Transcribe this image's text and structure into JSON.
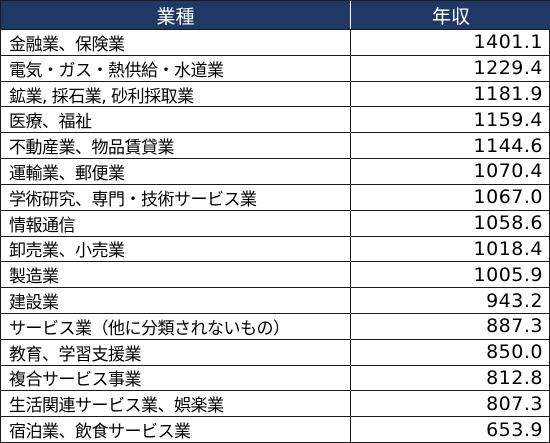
{
  "table": {
    "headers": {
      "industry": "業種",
      "income": "年収"
    },
    "rows": [
      {
        "industry": "金融業、保険業",
        "income": "1401.1"
      },
      {
        "industry": "電気・ガス・熱供給・水道業",
        "income": "1229.4"
      },
      {
        "industry": "鉱業, 採石業, 砂利採取業",
        "income": "1181.9"
      },
      {
        "industry": "医療、福祉",
        "income": "1159.4"
      },
      {
        "industry": "不動産業、物品賃貸業",
        "income": "1144.6"
      },
      {
        "industry": "運輸業、郵便業",
        "income": "1070.4"
      },
      {
        "industry": "学術研究、専門・技術サービス業",
        "income": "1067.0"
      },
      {
        "industry": "情報通信",
        "income": "1058.6"
      },
      {
        "industry": "卸売業、小売業",
        "income": "1018.4"
      },
      {
        "industry": "製造業",
        "income": "1005.9"
      },
      {
        "industry": "建設業",
        "income": "943.2"
      },
      {
        "industry": "サービス業（他に分類されないもの）",
        "income": "887.3"
      },
      {
        "industry": "教育、学習支援業",
        "income": "850.0"
      },
      {
        "industry": "複合サービス事業",
        "income": "812.8"
      },
      {
        "industry": "生活関連サービス業、娯楽業",
        "income": "807.3"
      },
      {
        "industry": "宿泊業、飲食サービス業",
        "income": "653.9"
      }
    ],
    "colors": {
      "header_bg": "#1f3864",
      "header_text": "#ffffff",
      "border": "#1a1a1a"
    }
  }
}
